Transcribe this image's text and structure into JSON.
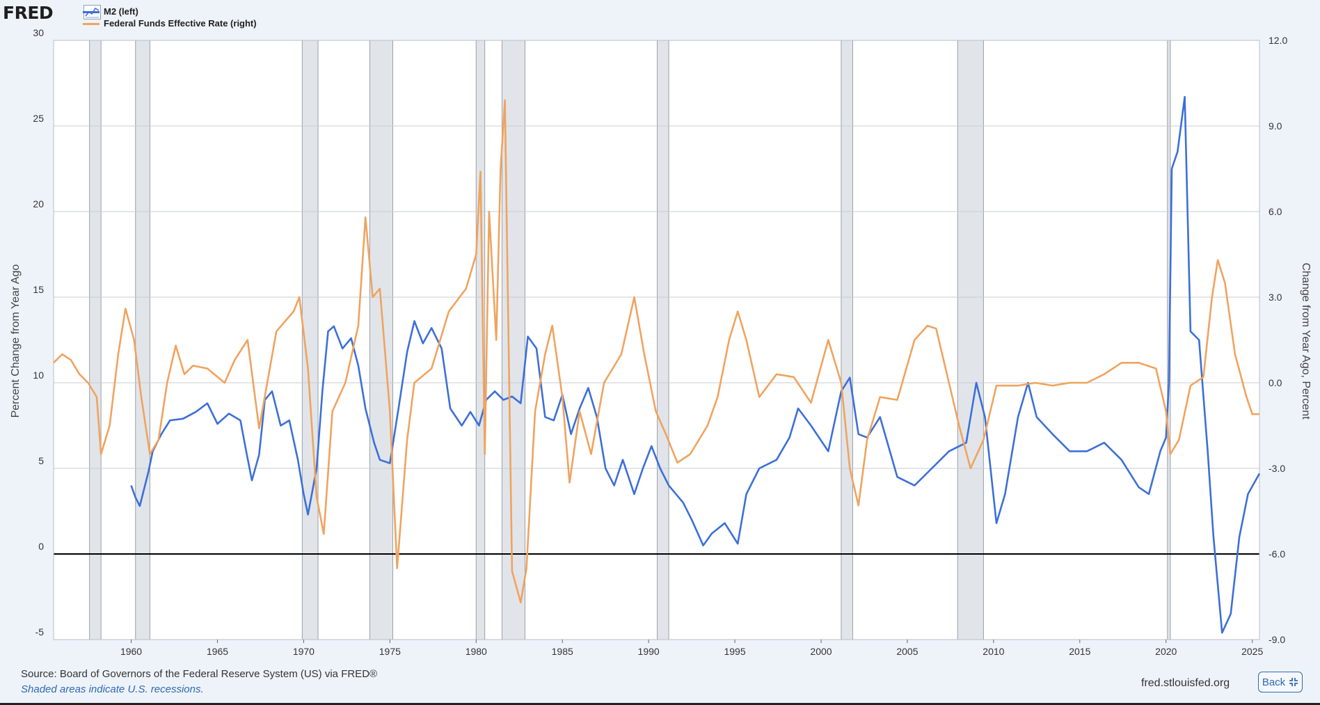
{
  "header": {
    "logo_text": "FRED",
    "graph_icon": "line-chart-icon"
  },
  "legend": [
    {
      "label": "M2 (left)",
      "color": "#3c6fd9"
    },
    {
      "label": "Federal Funds Effective Rate (right)",
      "color": "#f0a35e"
    }
  ],
  "footer": {
    "source": "Source: Board of Governors of the Federal Reserve System (US) via FRED®",
    "note": "Shaded areas indicate U.S. recessions.",
    "url": "fred.stlouisfed.org",
    "back_label": "Back",
    "back_icon": "collapse-icon"
  },
  "chart_data": {
    "type": "line",
    "title": "",
    "x_range": [
      "1955-07",
      "2025-06"
    ],
    "x_ticks": [
      "1960",
      "1965",
      "1970",
      "1975",
      "1980",
      "1985",
      "1990",
      "1995",
      "2000",
      "2005",
      "2010",
      "2015",
      "2020",
      "2025"
    ],
    "left_axis": {
      "label": "Percent Change from Year Ago",
      "range": [
        -5,
        30
      ],
      "ticks": [
        "30",
        "25",
        "20",
        "15",
        "10",
        "5",
        "0",
        "-5"
      ]
    },
    "right_axis": {
      "label": "Change from Year Ago, Percent",
      "range": [
        -9.0,
        12.0
      ],
      "ticks": [
        "12.0",
        "9.0",
        "6.0",
        "3.0",
        "0.0",
        "-3.0",
        "-6.0",
        "-9.0"
      ]
    },
    "grid": true,
    "zero_line": "0",
    "recessions": [
      [
        "1957-08",
        "1958-04"
      ],
      [
        "1960-04",
        "1961-02"
      ],
      [
        "1969-12",
        "1970-11"
      ],
      [
        "1973-11",
        "1975-03"
      ],
      [
        "1980-01",
        "1980-07"
      ],
      [
        "1981-07",
        "1982-11"
      ],
      [
        "1990-07",
        "1991-03"
      ],
      [
        "2001-03",
        "2001-11"
      ],
      [
        "2007-12",
        "2009-06"
      ],
      [
        "2020-02",
        "2020-04"
      ]
    ],
    "series": [
      {
        "name": "M2 (left)",
        "axis": "left",
        "color": "#3c6fd9",
        "points": [
          [
            "1960-01",
            4.0
          ],
          [
            "1960-04",
            3.3
          ],
          [
            "1960-07",
            2.8
          ],
          [
            "1960-10",
            3.8
          ],
          [
            "1961-01",
            4.8
          ],
          [
            "1961-04",
            6.0
          ],
          [
            "1961-10",
            7.0
          ],
          [
            "1962-04",
            7.8
          ],
          [
            "1963-01",
            7.9
          ],
          [
            "1963-10",
            8.3
          ],
          [
            "1964-06",
            8.8
          ],
          [
            "1965-01",
            7.6
          ],
          [
            "1965-09",
            8.2
          ],
          [
            "1966-05",
            7.8
          ],
          [
            "1966-09",
            6.0
          ],
          [
            "1967-01",
            4.3
          ],
          [
            "1967-06",
            5.8
          ],
          [
            "1967-10",
            9.0
          ],
          [
            "1968-03",
            9.5
          ],
          [
            "1968-09",
            7.5
          ],
          [
            "1969-03",
            7.8
          ],
          [
            "1969-09",
            5.5
          ],
          [
            "1970-01",
            3.5
          ],
          [
            "1970-04",
            2.3
          ],
          [
            "1970-10",
            5.0
          ],
          [
            "1971-02",
            9.5
          ],
          [
            "1971-06",
            13.0
          ],
          [
            "1971-10",
            13.3
          ],
          [
            "1972-04",
            12.0
          ],
          [
            "1972-10",
            12.6
          ],
          [
            "1973-03",
            11.0
          ],
          [
            "1973-08",
            8.5
          ],
          [
            "1974-02",
            6.5
          ],
          [
            "1974-06",
            5.5
          ],
          [
            "1975-01",
            5.3
          ],
          [
            "1975-07",
            8.5
          ],
          [
            "1976-01",
            11.8
          ],
          [
            "1976-06",
            13.6
          ],
          [
            "1976-12",
            12.3
          ],
          [
            "1977-06",
            13.2
          ],
          [
            "1978-01",
            12.0
          ],
          [
            "1978-07",
            8.5
          ],
          [
            "1979-03",
            7.5
          ],
          [
            "1979-09",
            8.3
          ],
          [
            "1980-03",
            7.5
          ],
          [
            "1980-08",
            9.0
          ],
          [
            "1981-02",
            9.5
          ],
          [
            "1981-08",
            9.0
          ],
          [
            "1982-02",
            9.2
          ],
          [
            "1982-08",
            8.8
          ],
          [
            "1983-01",
            12.7
          ],
          [
            "1983-07",
            12.0
          ],
          [
            "1984-01",
            8.0
          ],
          [
            "1984-07",
            7.8
          ],
          [
            "1985-01",
            9.3
          ],
          [
            "1985-07",
            7.0
          ],
          [
            "1986-01",
            8.5
          ],
          [
            "1986-07",
            9.7
          ],
          [
            "1987-01",
            8.0
          ],
          [
            "1987-07",
            5.0
          ],
          [
            "1988-01",
            4.0
          ],
          [
            "1988-07",
            5.5
          ],
          [
            "1989-03",
            3.5
          ],
          [
            "1989-09",
            5.0
          ],
          [
            "1990-03",
            6.3
          ],
          [
            "1990-09",
            5.0
          ],
          [
            "1991-03",
            4.0
          ],
          [
            "1992-01",
            3.0
          ],
          [
            "1992-07",
            2.0
          ],
          [
            "1993-03",
            0.5
          ],
          [
            "1993-09",
            1.2
          ],
          [
            "1994-06",
            1.8
          ],
          [
            "1995-03",
            0.6
          ],
          [
            "1995-09",
            3.5
          ],
          [
            "1996-06",
            5.0
          ],
          [
            "1997-06",
            5.5
          ],
          [
            "1998-03",
            6.8
          ],
          [
            "1998-09",
            8.5
          ],
          [
            "1999-06",
            7.5
          ],
          [
            "2000-06",
            6.0
          ],
          [
            "2001-03",
            9.5
          ],
          [
            "2001-09",
            10.3
          ],
          [
            "2002-03",
            7.0
          ],
          [
            "2002-09",
            6.8
          ],
          [
            "2003-06",
            8.0
          ],
          [
            "2004-06",
            4.5
          ],
          [
            "2005-06",
            4.0
          ],
          [
            "2006-06",
            5.0
          ],
          [
            "2007-06",
            6.0
          ],
          [
            "2008-06",
            6.5
          ],
          [
            "2009-01",
            10.0
          ],
          [
            "2009-07",
            8.0
          ],
          [
            "2010-03",
            1.8
          ],
          [
            "2010-09",
            3.5
          ],
          [
            "2011-06",
            8.0
          ],
          [
            "2012-01",
            10.0
          ],
          [
            "2012-07",
            8.0
          ],
          [
            "2013-06",
            7.0
          ],
          [
            "2014-06",
            6.0
          ],
          [
            "2015-06",
            6.0
          ],
          [
            "2016-06",
            6.5
          ],
          [
            "2017-06",
            5.5
          ],
          [
            "2018-06",
            3.9
          ],
          [
            "2019-01",
            3.5
          ],
          [
            "2019-09",
            6.0
          ],
          [
            "2020-01",
            6.8
          ],
          [
            "2020-03",
            10.0
          ],
          [
            "2020-05",
            22.5
          ],
          [
            "2020-09",
            23.5
          ],
          [
            "2021-02",
            26.7
          ],
          [
            "2021-06",
            13.0
          ],
          [
            "2021-12",
            12.5
          ],
          [
            "2022-06",
            6.0
          ],
          [
            "2022-10",
            1.0
          ],
          [
            "2023-04",
            -4.6
          ],
          [
            "2023-10",
            -3.5
          ],
          [
            "2024-04",
            1.0
          ],
          [
            "2024-10",
            3.5
          ],
          [
            "2025-06",
            4.7
          ]
        ]
      },
      {
        "name": "Federal Funds Effective Rate (right)",
        "axis": "right",
        "color": "#f0a35e",
        "points": [
          [
            "1955-07",
            0.7
          ],
          [
            "1956-01",
            1.0
          ],
          [
            "1956-07",
            0.8
          ],
          [
            "1957-01",
            0.3
          ],
          [
            "1957-07",
            0.0
          ],
          [
            "1958-01",
            -0.5
          ],
          [
            "1958-04",
            -2.5
          ],
          [
            "1958-10",
            -1.5
          ],
          [
            "1959-04",
            1.0
          ],
          [
            "1959-09",
            2.6
          ],
          [
            "1960-03",
            1.5
          ],
          [
            "1960-08",
            -0.5
          ],
          [
            "1961-02",
            -2.5
          ],
          [
            "1961-08",
            -2.0
          ],
          [
            "1962-02",
            0.0
          ],
          [
            "1962-08",
            1.3
          ],
          [
            "1963-02",
            0.3
          ],
          [
            "1963-08",
            0.6
          ],
          [
            "1964-06",
            0.5
          ],
          [
            "1965-06",
            0.0
          ],
          [
            "1966-01",
            0.8
          ],
          [
            "1966-10",
            1.5
          ],
          [
            "1967-06",
            -1.6
          ],
          [
            "1968-06",
            1.8
          ],
          [
            "1969-06",
            2.5
          ],
          [
            "1969-10",
            3.0
          ],
          [
            "1970-04",
            0.5
          ],
          [
            "1970-10",
            -4.0
          ],
          [
            "1971-03",
            -5.3
          ],
          [
            "1971-09",
            -1.0
          ],
          [
            "1972-06",
            0.0
          ],
          [
            "1973-03",
            2.0
          ],
          [
            "1973-08",
            5.8
          ],
          [
            "1974-01",
            3.0
          ],
          [
            "1974-06",
            3.3
          ],
          [
            "1975-01",
            -1.0
          ],
          [
            "1975-06",
            -6.5
          ],
          [
            "1976-01",
            -2.0
          ],
          [
            "1976-06",
            0.0
          ],
          [
            "1977-06",
            0.5
          ],
          [
            "1978-06",
            2.5
          ],
          [
            "1979-06",
            3.3
          ],
          [
            "1980-01",
            4.5
          ],
          [
            "1980-04",
            7.4
          ],
          [
            "1980-07",
            -2.5
          ],
          [
            "1980-10",
            6.0
          ],
          [
            "1981-03",
            1.5
          ],
          [
            "1981-06",
            7.5
          ],
          [
            "1981-09",
            9.9
          ],
          [
            "1982-02",
            -6.6
          ],
          [
            "1982-08",
            -7.7
          ],
          [
            "1982-12",
            -6.5
          ],
          [
            "1983-06",
            -1.0
          ],
          [
            "1984-01",
            1.0
          ],
          [
            "1984-06",
            2.0
          ],
          [
            "1985-01",
            -0.5
          ],
          [
            "1985-06",
            -3.5
          ],
          [
            "1986-01",
            -1.0
          ],
          [
            "1986-09",
            -2.5
          ],
          [
            "1987-06",
            0.0
          ],
          [
            "1988-06",
            1.0
          ],
          [
            "1989-03",
            3.0
          ],
          [
            "1989-10",
            1.0
          ],
          [
            "1990-06",
            -1.0
          ],
          [
            "1991-01",
            -1.8
          ],
          [
            "1991-09",
            -2.8
          ],
          [
            "1992-06",
            -2.5
          ],
          [
            "1993-06",
            -1.5
          ],
          [
            "1994-01",
            -0.5
          ],
          [
            "1994-09",
            1.5
          ],
          [
            "1995-03",
            2.5
          ],
          [
            "1995-09",
            1.5
          ],
          [
            "1996-06",
            -0.5
          ],
          [
            "1997-06",
            0.3
          ],
          [
            "1998-06",
            0.2
          ],
          [
            "1999-06",
            -0.7
          ],
          [
            "2000-06",
            1.5
          ],
          [
            "2001-03",
            0.0
          ],
          [
            "2001-09",
            -3.0
          ],
          [
            "2002-03",
            -4.3
          ],
          [
            "2002-09",
            -2.0
          ],
          [
            "2003-06",
            -0.5
          ],
          [
            "2004-06",
            -0.6
          ],
          [
            "2005-06",
            1.5
          ],
          [
            "2006-03",
            2.0
          ],
          [
            "2006-09",
            1.9
          ],
          [
            "2007-06",
            0.0
          ],
          [
            "2008-01",
            -1.5
          ],
          [
            "2008-09",
            -3.0
          ],
          [
            "2009-06",
            -2.0
          ],
          [
            "2010-03",
            -0.1
          ],
          [
            "2011-06",
            -0.1
          ],
          [
            "2012-06",
            0.0
          ],
          [
            "2013-06",
            -0.1
          ],
          [
            "2014-06",
            0.0
          ],
          [
            "2015-06",
            0.0
          ],
          [
            "2016-06",
            0.3
          ],
          [
            "2017-06",
            0.7
          ],
          [
            "2018-06",
            0.7
          ],
          [
            "2019-06",
            0.5
          ],
          [
            "2020-01",
            -1.0
          ],
          [
            "2020-04",
            -2.5
          ],
          [
            "2020-10",
            -2.0
          ],
          [
            "2021-06",
            -0.1
          ],
          [
            "2022-03",
            0.2
          ],
          [
            "2022-09",
            3.0
          ],
          [
            "2023-01",
            4.3
          ],
          [
            "2023-06",
            3.5
          ],
          [
            "2024-01",
            1.0
          ],
          [
            "2024-09",
            -0.5
          ],
          [
            "2025-01",
            -1.1
          ],
          [
            "2025-06",
            -1.1
          ]
        ]
      }
    ]
  }
}
